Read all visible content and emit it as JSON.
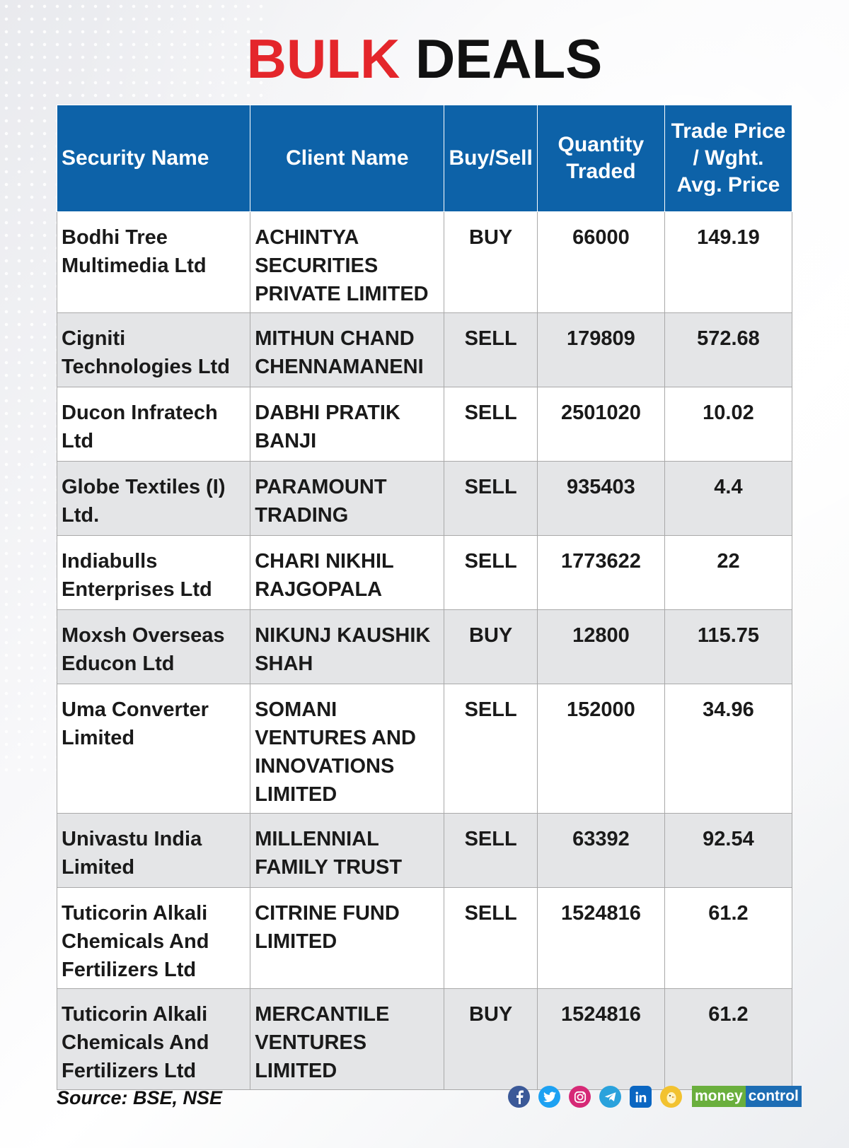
{
  "title": {
    "word1": "BULK",
    "word2": "DEALS"
  },
  "table": {
    "headers": {
      "security": "Security Name",
      "client": "Client Name",
      "side": "Buy/Sell",
      "quantity": "Quantity Traded",
      "price": "Trade Price / Wght. Avg. Price"
    },
    "rows": [
      {
        "security": "Bodhi Tree Multimedia Ltd",
        "client": "ACHINTYA SECURITIES PRIVATE LIMITED",
        "side": "BUY",
        "quantity": "66000",
        "price": "149.19"
      },
      {
        "security": "Cigniti Technologies Ltd",
        "client": "MITHUN CHAND CHENNAMANENI",
        "side": "SELL",
        "quantity": "179809",
        "price": "572.68"
      },
      {
        "security": "Ducon Infratech Ltd",
        "client": "DABHI PRATIK BANJI",
        "side": "SELL",
        "quantity": "2501020",
        "price": "10.02"
      },
      {
        "security": "Globe Textiles (I) Ltd.",
        "client": "PARAMOUNT TRADING",
        "side": "SELL",
        "quantity": "935403",
        "price": "4.4"
      },
      {
        "security": "Indiabulls Enterprises Ltd",
        "client": "CHARI NIKHIL RAJGOPALA",
        "side": "SELL",
        "quantity": "1773622",
        "price": "22"
      },
      {
        "security": "Moxsh Overseas Educon Ltd",
        "client": "NIKUNJ KAUSHIK SHAH",
        "side": "BUY",
        "quantity": "12800",
        "price": "115.75"
      },
      {
        "security": "Uma Converter Limited",
        "client": "SOMANI VENTURES AND INNOVATIONS LIMITED",
        "side": "SELL",
        "quantity": "152000",
        "price": "34.96"
      },
      {
        "security": "Univastu India Limited",
        "client": "MILLENNIAL FAMILY TRUST",
        "side": "SELL",
        "quantity": "63392",
        "price": "92.54"
      },
      {
        "security": "Tuticorin Alkali Chemicals And Fertilizers Ltd",
        "client": "CITRINE FUND LIMITED",
        "side": "SELL",
        "quantity": "1524816",
        "price": "61.2"
      },
      {
        "security": "Tuticorin Alkali Chemicals And Fertilizers Ltd",
        "client": "MERCANTILE VENTURES LIMITED",
        "side": "BUY",
        "quantity": "1524816",
        "price": "61.2"
      }
    ]
  },
  "footer": {
    "source": "Source: BSE, NSE",
    "social_icons": [
      "facebook-icon",
      "twitter-icon",
      "instagram-icon",
      "telegram-icon",
      "linkedin-icon",
      "koo-icon"
    ],
    "logo_money": "money",
    "logo_control": "control"
  },
  "colors": {
    "header_bg": "#0d62a8",
    "title_red": "#e4262b",
    "row_alt": "#e4e5e7"
  }
}
